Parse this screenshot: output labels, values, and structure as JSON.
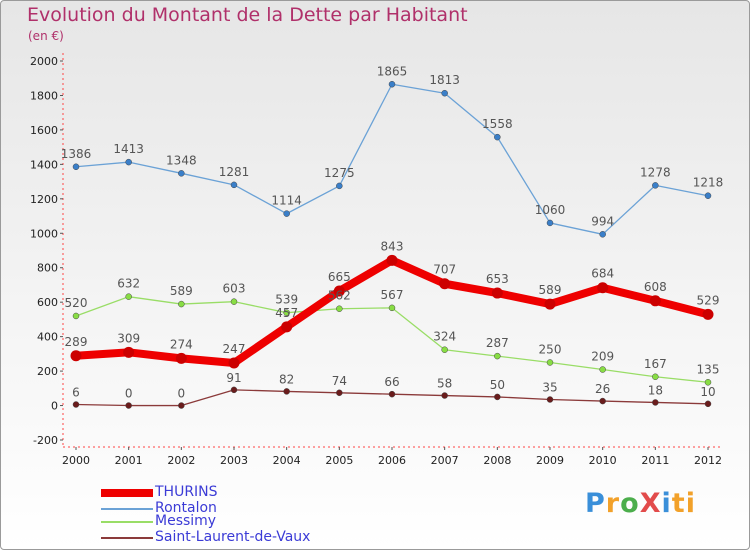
{
  "page": {
    "title": "Evolution du Montant de la Dette par Habitant",
    "unit": "(en €)",
    "logo": "ProXiti"
  },
  "chart_data": {
    "type": "line",
    "title": "Evolution du Montant de la Dette par Habitant",
    "subtitle": "(en €)",
    "x": [
      "2000",
      "2001",
      "2002",
      "2003",
      "2004",
      "2005",
      "2006",
      "2007",
      "2008",
      "2009",
      "2010",
      "2011",
      "2012"
    ],
    "ylim": [
      -200,
      2000
    ],
    "yticks": [
      -200,
      0,
      200,
      400,
      600,
      800,
      1000,
      1200,
      1400,
      1600,
      1800,
      2000
    ],
    "grid": false,
    "legend_position": "bottom-left",
    "series": [
      {
        "name": "THURINS",
        "color": "#ee0000",
        "values": [
          289,
          309,
          274,
          247,
          457,
          665,
          843,
          707,
          653,
          589,
          684,
          608,
          529
        ]
      },
      {
        "name": "Rontalon",
        "color": "#6ba2d6",
        "values": [
          1386,
          1413,
          1348,
          1281,
          1114,
          1275,
          1865,
          1813,
          1558,
          1060,
          994,
          1278,
          1218
        ]
      },
      {
        "name": "Messimy",
        "color": "#99dd66",
        "values": [
          520,
          632,
          589,
          603,
          539,
          562,
          567,
          324,
          287,
          250,
          209,
          167,
          135
        ]
      },
      {
        "name": "Saint-Laurent-de-Vaux",
        "color": "#8b3a3a",
        "values": [
          6,
          0,
          0,
          91,
          82,
          74,
          66,
          58,
          50,
          35,
          26,
          18,
          10
        ]
      }
    ]
  }
}
